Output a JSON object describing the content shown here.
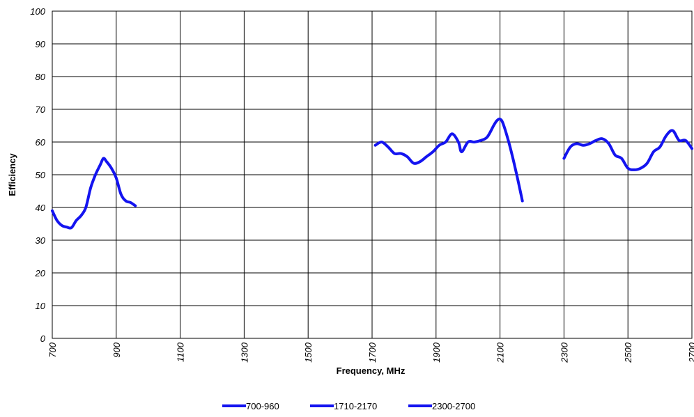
{
  "chart_data": {
    "type": "line",
    "xlabel": "Frequency, MHz",
    "ylabel": "Efficiency",
    "ylim": [
      0,
      100
    ],
    "y_ticks": [
      "0",
      "10",
      "20",
      "30",
      "40",
      "50",
      "60",
      "70",
      "80",
      "90",
      "100"
    ],
    "x_tick_labels": [
      "700",
      "900",
      "1100",
      "1300",
      "1500",
      "1700",
      "1900",
      "2100",
      "2300",
      "2500",
      "2700"
    ],
    "grid": true,
    "legend_position": "bottom",
    "line_color": "#1414f0",
    "series": [
      {
        "name": "700-960",
        "x": [
          700,
          715,
          730,
          745,
          760,
          775,
          790,
          805,
          820,
          835,
          850,
          860,
          870,
          885,
          900,
          915,
          930,
          945,
          960
        ],
        "y": [
          39,
          36,
          34.5,
          34,
          33.8,
          36,
          37.5,
          40,
          46,
          50,
          53,
          55,
          54,
          52,
          49,
          44,
          42,
          41.5,
          40.5
        ]
      },
      {
        "name": "1710-2170",
        "x": [
          1710,
          1730,
          1750,
          1770,
          1790,
          1810,
          1830,
          1850,
          1870,
          1890,
          1910,
          1930,
          1950,
          1970,
          1980,
          2000,
          2020,
          2040,
          2060,
          2080,
          2090,
          2100,
          2110,
          2130,
          2150,
          2170
        ],
        "y": [
          59,
          60,
          58.5,
          56.5,
          56.5,
          55.5,
          53.5,
          54,
          55.5,
          57,
          59,
          60,
          62.5,
          60,
          57,
          60,
          60,
          60.5,
          61.5,
          65,
          66.5,
          67,
          65.5,
          59,
          51,
          42
        ]
      },
      {
        "name": "2300-2700",
        "x": [
          2300,
          2320,
          2340,
          2360,
          2380,
          2400,
          2420,
          2440,
          2460,
          2480,
          2500,
          2520,
          2540,
          2560,
          2580,
          2600,
          2620,
          2640,
          2660,
          2680,
          2700
        ],
        "y": [
          55,
          58.5,
          59.5,
          59,
          59.5,
          60.5,
          61,
          59.5,
          56,
          55,
          52,
          51.5,
          52,
          53.5,
          57,
          58.5,
          62,
          63.5,
          60.5,
          60.5,
          58
        ]
      }
    ]
  }
}
